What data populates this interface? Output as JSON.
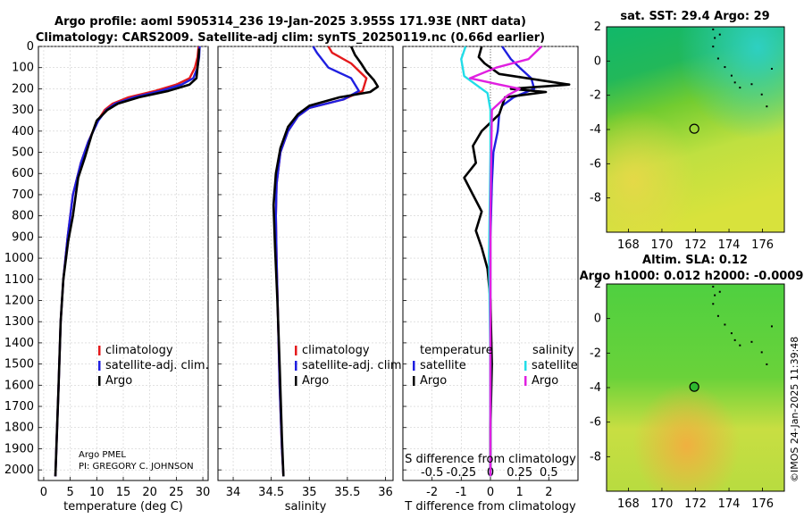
{
  "title": {
    "line1": "Argo profile: aoml 5905314_236 19-Jan-2025 3.955S 171.93E (NRT data)",
    "line2": "Climatology: CARS2009. Satellite-adj clim: synTS_20250119.nc (0.66d earlier)"
  },
  "credit": {
    "line1": "Argo PMEL",
    "line2": "PI: GREGORY C. JOHNSON"
  },
  "footer": "©IMOS 24-Jan-2025 11:39:48",
  "colors": {
    "climatology": "#e41a1c",
    "satellite": "#1f1fe0",
    "argo": "#000000",
    "sat_salinity": "#22dde8",
    "argo_salinity": "#e020e0"
  },
  "chart_data": [
    {
      "type": "line",
      "id": "temperature",
      "xlabel": "temperature (deg C)",
      "xlim": [
        -1,
        31
      ],
      "ylim": [
        0,
        2050
      ],
      "xticks": [
        0,
        5,
        10,
        15,
        20,
        25,
        30
      ],
      "yticks": [
        0,
        100,
        200,
        300,
        400,
        500,
        600,
        700,
        800,
        900,
        1000,
        1100,
        1200,
        1300,
        1400,
        1500,
        1600,
        1700,
        1800,
        1900,
        2000
      ],
      "legend": [
        "climatology",
        "satellite-adj. clim.",
        "Argo"
      ],
      "series": [
        {
          "name": "climatology",
          "color": "#e41a1c",
          "x": [
            29.2,
            29.0,
            28.5,
            27.5,
            25.0,
            21.0,
            16.0,
            13.0,
            11.5,
            10.2,
            8.4,
            7.0,
            5.5,
            4.5,
            3.7,
            3.2,
            2.8,
            2.45,
            2.2
          ],
          "y": [
            0,
            50,
            100,
            150,
            180,
            210,
            240,
            270,
            300,
            350,
            450,
            550,
            700,
            900,
            1100,
            1300,
            1600,
            1850,
            2030
          ]
        },
        {
          "name": "satellite-adj. clim.",
          "color": "#1f1fe0",
          "x": [
            29.4,
            29.3,
            29.0,
            28.2,
            26.0,
            22.0,
            17.0,
            13.5,
            11.8,
            10.3,
            8.4,
            7.0,
            5.5,
            4.5,
            3.7,
            3.2,
            2.8,
            2.45,
            2.2
          ],
          "y": [
            0,
            50,
            100,
            150,
            180,
            210,
            240,
            270,
            300,
            350,
            450,
            550,
            700,
            900,
            1100,
            1300,
            1600,
            1850,
            2030
          ]
        },
        {
          "name": "Argo",
          "color": "#000000",
          "x": [
            29.3,
            29.2,
            29.0,
            28.8,
            27.5,
            23.5,
            18.0,
            14.0,
            12.0,
            10.0,
            9.0,
            7.8,
            6.5,
            5.5,
            4.6,
            3.7,
            3.2,
            2.8,
            2.45,
            2.2
          ],
          "y": [
            10,
            50,
            100,
            150,
            180,
            210,
            240,
            270,
            300,
            350,
            420,
            520,
            620,
            800,
            920,
            1100,
            1300,
            1600,
            1850,
            2030
          ]
        }
      ]
    },
    {
      "type": "line",
      "id": "salinity",
      "xlabel": "salinity",
      "xlim": [
        33.8,
        36.1
      ],
      "ylim": [
        0,
        2050
      ],
      "xticks": [
        34,
        34.5,
        35,
        35.5,
        36
      ],
      "legend": [
        "climatology",
        "satellite-adj. clim.",
        "Argo"
      ],
      "series": [
        {
          "name": "climatology",
          "color": "#e41a1c",
          "x": [
            35.25,
            35.3,
            35.55,
            35.75,
            35.7,
            35.45,
            35.0,
            34.85,
            34.72,
            34.62,
            34.57,
            34.56,
            34.57,
            34.59,
            34.61,
            34.64,
            34.66
          ],
          "y": [
            0,
            30,
            80,
            150,
            210,
            250,
            290,
            330,
            400,
            500,
            650,
            800,
            1000,
            1300,
            1600,
            1900,
            2030
          ]
        },
        {
          "name": "satellite-adj. clim.",
          "color": "#1f1fe0",
          "x": [
            35.05,
            35.1,
            35.25,
            35.55,
            35.65,
            35.45,
            35.0,
            34.85,
            34.72,
            34.62,
            34.57,
            34.56,
            34.57,
            34.59,
            34.61,
            34.64,
            34.66
          ],
          "y": [
            0,
            30,
            100,
            150,
            210,
            250,
            290,
            330,
            400,
            500,
            650,
            800,
            1000,
            1300,
            1600,
            1900,
            2030
          ]
        },
        {
          "name": "Argo",
          "color": "#000000",
          "x": [
            35.55,
            35.6,
            35.68,
            35.75,
            35.85,
            35.9,
            35.8,
            35.4,
            35.0,
            34.85,
            34.72,
            34.62,
            34.56,
            34.53,
            34.55,
            34.58,
            34.61,
            34.64,
            34.66
          ],
          "y": [
            0,
            40,
            80,
            120,
            160,
            190,
            215,
            240,
            280,
            320,
            380,
            480,
            600,
            750,
            950,
            1200,
            1500,
            1850,
            2030
          ]
        }
      ]
    },
    {
      "type": "line",
      "id": "differences",
      "xlabel": "T difference from climatology",
      "xlabel_top": "S difference from climatology",
      "xlim": [
        -3,
        3
      ],
      "ylim": [
        0,
        2050
      ],
      "xticks": [
        -2,
        -1,
        0,
        1,
        2
      ],
      "xticks_s": [
        -0.5,
        -0.25,
        0,
        0.25,
        0.5
      ],
      "legend_temperature": {
        "title": "temperature",
        "items": [
          "satellite",
          "Argo"
        ]
      },
      "legend_salinity": {
        "title": "salinity",
        "items": [
          "satellite",
          "Argo"
        ]
      },
      "series": [
        {
          "name": "T satellite",
          "color": "#1f1fe0",
          "x": [
            0.4,
            0.7,
            1.0,
            1.4,
            1.5,
            0.8,
            0.4,
            0.3,
            0.25,
            0.1,
            0.05,
            0.0,
            0.0,
            0.0
          ],
          "y": [
            0,
            60,
            100,
            150,
            200,
            240,
            280,
            320,
            400,
            500,
            650,
            900,
            1400,
            2030
          ]
        },
        {
          "name": "T Argo",
          "color": "#000000",
          "x": [
            -0.3,
            -0.4,
            -0.2,
            0.3,
            2.7,
            0.7,
            1.9,
            0.5,
            0.3,
            -0.3,
            -0.6,
            -0.5,
            -0.9,
            -0.6,
            -0.3,
            -0.5,
            -0.3,
            -0.1,
            0.0,
            0.05,
            0.0,
            0.0
          ],
          "y": [
            0,
            50,
            80,
            130,
            180,
            200,
            215,
            240,
            320,
            400,
            470,
            550,
            620,
            700,
            780,
            870,
            950,
            1050,
            1200,
            1500,
            1800,
            2030
          ]
        },
        {
          "name": "S satellite",
          "color": "#22dde8",
          "x": [
            -0.85,
            -1.0,
            -0.9,
            -0.1,
            0.0,
            0.0,
            -0.05,
            0.0,
            0.0
          ],
          "y": [
            0,
            60,
            140,
            220,
            300,
            500,
            1000,
            1500,
            2030
          ]
        },
        {
          "name": "S Argo",
          "color": "#e020e0",
          "x": [
            1.75,
            1.3,
            0.2,
            -0.7,
            0.3,
            1.0,
            0.6,
            0.05,
            0.0,
            0.0
          ],
          "y": [
            0,
            60,
            100,
            150,
            180,
            200,
            230,
            300,
            800,
            2030
          ]
        }
      ]
    },
    {
      "type": "heatmap",
      "id": "sst-map",
      "title": "sat. SST: 29.4 Argo: 29",
      "xlim": [
        166.7,
        177.3
      ],
      "ylim": [
        -10,
        2
      ],
      "xticks": [
        168,
        170,
        172,
        174,
        176
      ],
      "yticks": [
        2,
        0,
        -2,
        -4,
        -6,
        -8
      ],
      "float_position": [
        171.93,
        -3.955
      ]
    },
    {
      "type": "heatmap",
      "id": "sla-map",
      "title": "Altim. SLA: 0.12",
      "subtitle": "Argo h1000: 0.012 h2000: -0.0009",
      "xlim": [
        166.7,
        177.3
      ],
      "ylim": [
        -10,
        2
      ],
      "xticks": [
        168,
        170,
        172,
        174,
        176
      ],
      "yticks": [
        2,
        0,
        -2,
        -4,
        -6,
        -8
      ],
      "float_position": [
        171.93,
        -3.955
      ]
    }
  ]
}
